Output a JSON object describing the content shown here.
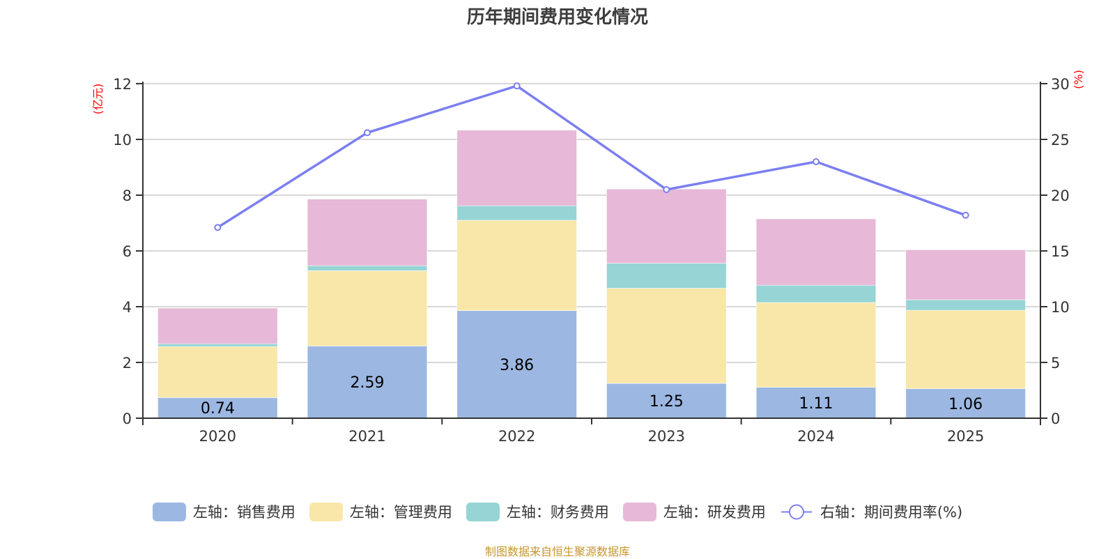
{
  "chart_data": {
    "type": "bar",
    "title": "历年期间费用变化情况",
    "categories": [
      "2020",
      "2021",
      "2022",
      "2023",
      "2024",
      "2025"
    ],
    "stacked": true,
    "left_axis": {
      "unit_label": "(亿元)",
      "ylim": [
        0,
        12
      ],
      "ticks": [
        0,
        2,
        4,
        6,
        8,
        10,
        12
      ]
    },
    "right_axis": {
      "unit_label": "(%)",
      "ylim": [
        0,
        30
      ],
      "ticks": [
        0,
        5,
        10,
        15,
        20,
        25,
        30
      ]
    },
    "grid": true,
    "legend_position": "bottom",
    "series": [
      {
        "name": "左轴：销售费用",
        "type": "bar",
        "axis": "left",
        "color": "#9cb8e2",
        "values": [
          0.74,
          2.59,
          3.86,
          1.25,
          1.11,
          1.06
        ],
        "show_labels": true
      },
      {
        "name": "左轴：管理费用",
        "type": "bar",
        "axis": "left",
        "color": "#f8e7a9",
        "values": [
          1.83,
          2.7,
          3.24,
          3.41,
          3.04,
          2.81
        ],
        "show_labels": false
      },
      {
        "name": "左轴：财务费用",
        "type": "bar",
        "axis": "left",
        "color": "#97d4d5",
        "values": [
          0.1,
          0.18,
          0.52,
          0.9,
          0.62,
          0.38
        ],
        "show_labels": false
      },
      {
        "name": "左轴：研发费用",
        "type": "bar",
        "axis": "left",
        "color": "#e7b8d7",
        "values": [
          1.28,
          2.39,
          2.71,
          2.66,
          2.38,
          1.79
        ],
        "show_labels": false
      },
      {
        "name": "右轴：期间费用率(%)",
        "type": "line",
        "axis": "right",
        "color": "#7b7ff0",
        "values": [
          17.1,
          25.6,
          29.8,
          20.5,
          23.0,
          18.2
        ]
      }
    ]
  },
  "footer": "制图数据来自恒生聚源数据库"
}
